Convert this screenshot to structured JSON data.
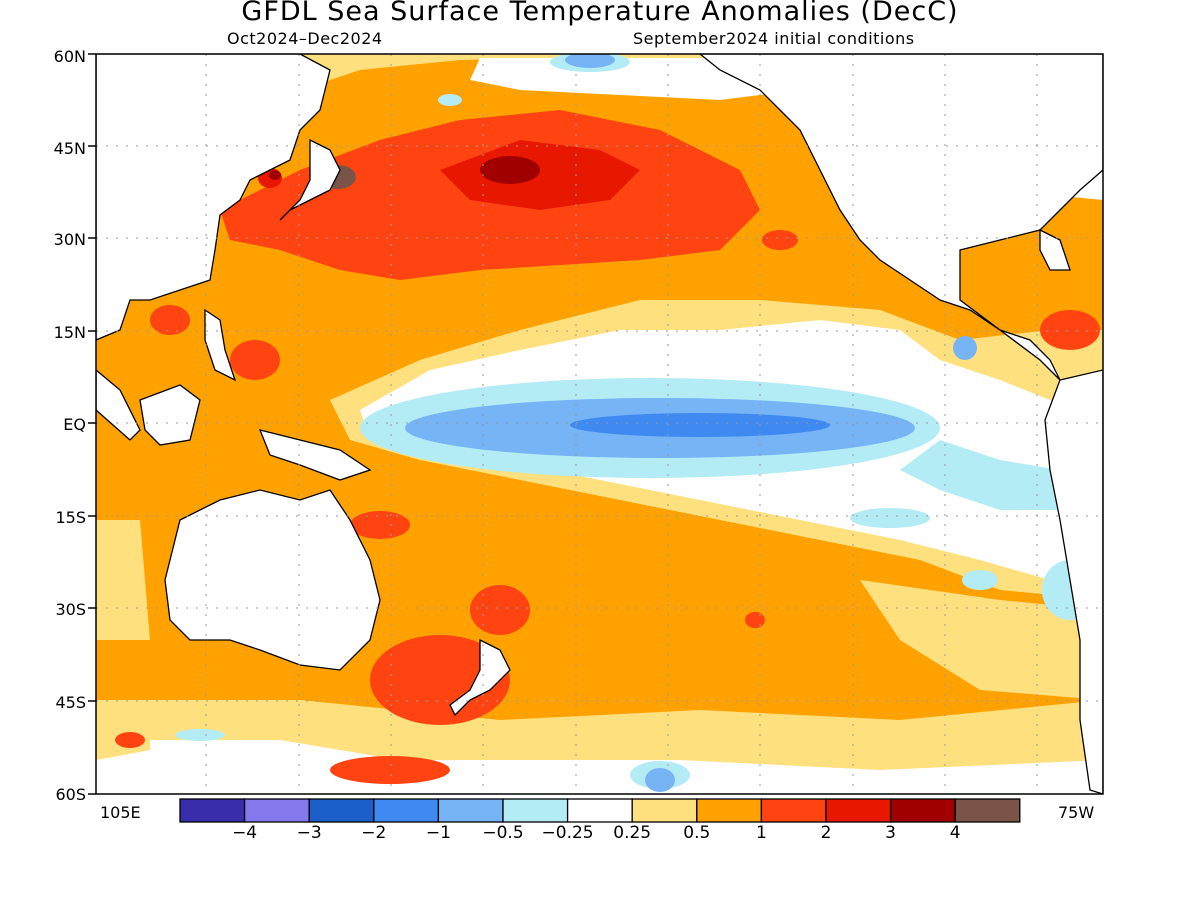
{
  "title": "GFDL Sea Surface Temperature Anomalies (DecC)",
  "subtitle_left": "Oct2024–Dec2024",
  "subtitle_right": "September2024 initial conditions",
  "lat_labels": [
    "60N",
    "45N",
    "30N",
    "15N",
    "EQ",
    "15S",
    "30S",
    "45S",
    "60S"
  ],
  "lon_labels": {
    "left": "105E",
    "right": "75W"
  },
  "colorbar": {
    "colors": [
      "#3a2dab",
      "#8577ec",
      "#1d5fc9",
      "#3e8af0",
      "#76b4f5",
      "#b4ecf6",
      "#ffffff",
      "#ffe07e",
      "#ffa200",
      "#ff4412",
      "#e81800",
      "#a10000",
      "#7a5448"
    ],
    "ticks": [
      "−4",
      "−3",
      "−2",
      "−1",
      "−0.5",
      "−0.25",
      "0.25",
      "0.5",
      "1",
      "2",
      "3",
      "4"
    ]
  },
  "map_colors": {
    "land": "#ffffff",
    "coast": "#000000",
    "grid": "#9a9a9a"
  }
}
